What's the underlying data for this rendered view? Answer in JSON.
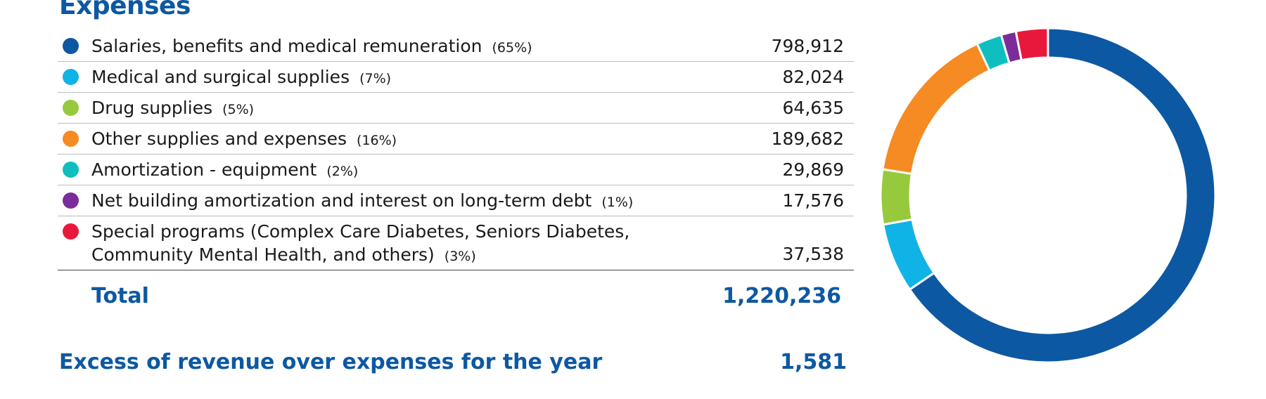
{
  "heading": "Expenses",
  "rows": [
    {
      "label": "Salaries, benefits and medical remuneration",
      "pct": "(65%)",
      "value": "798,912",
      "color": "#0d58a3"
    },
    {
      "label": "Medical and surgical supplies",
      "pct": "(7%)",
      "value": "82,024",
      "color": "#0fb3e6"
    },
    {
      "label": "Drug supplies",
      "pct": "(5%)",
      "value": "64,635",
      "color": "#97c93d"
    },
    {
      "label": "Other supplies and expenses",
      "pct": "(16%)",
      "value": "189,682",
      "color": "#f58b22"
    },
    {
      "label": "Amortization - equipment",
      "pct": "(2%)",
      "value": "29,869",
      "color": "#0fbfbf"
    },
    {
      "label": "Net building amortization and interest on long-term debt",
      "pct": "(1%)",
      "value": "17,576",
      "color": "#7b2c9a"
    },
    {
      "label": "Special programs (Complex Care Diabetes, Seniors Diabetes, Community Mental Health, and others)",
      "pct": "(3%)",
      "value": "37,538",
      "color": "#e8183c"
    }
  ],
  "total": {
    "label": "Total",
    "value": "1,220,236"
  },
  "excess": {
    "label": "Excess of revenue over expenses for the year",
    "value": "1,581"
  },
  "chart_data": {
    "type": "pie",
    "style": "donut",
    "categories": [
      "Salaries, benefits and medical remuneration",
      "Medical and surgical supplies",
      "Drug supplies",
      "Other supplies and expenses",
      "Amortization - equipment",
      "Net building amortization and interest on long-term debt",
      "Special programs (Complex Care Diabetes, Seniors Diabetes, Community Mental Health, and others)"
    ],
    "values": [
      798912,
      82024,
      64635,
      189682,
      29869,
      17576,
      37538
    ],
    "colors": [
      "#0d58a3",
      "#0fb3e6",
      "#97c93d",
      "#f58b22",
      "#0fbfbf",
      "#7b2c9a",
      "#e8183c"
    ],
    "start": "top",
    "direction": "clockwise"
  }
}
